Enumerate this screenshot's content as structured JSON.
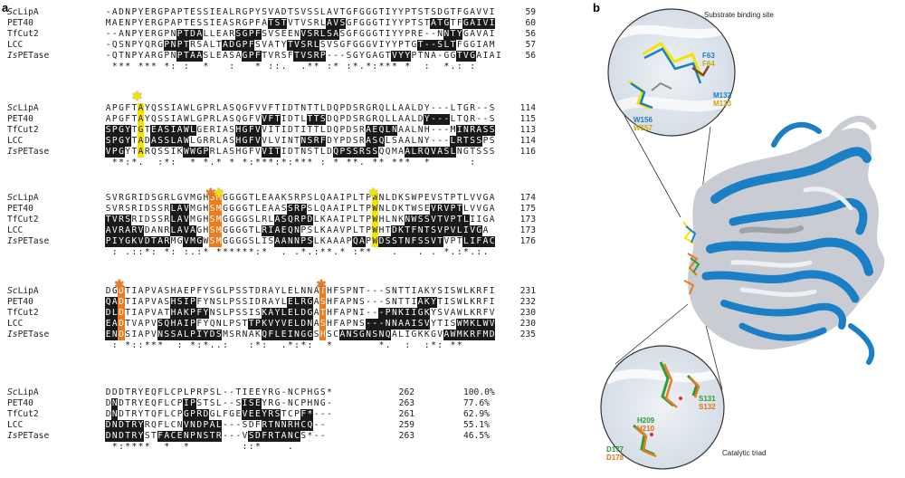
{
  "panel_a": "a",
  "panel_b": "b",
  "blocks": [
    {
      "rows": [
        {
          "name": "Sc",
          "name2": "LipA",
          "seq": "-ADNPYERGPAPTESSIEALRGPYSVADTSVSSLAVTGFGGGTIYYPTSTSDGTFGAVVI",
          "num": "59"
        },
        {
          "name": "",
          "name2": "PET40",
          "seq": "MAENPYERGPAPTESSIEASRGPFATSTVTVSRLAVSGFGGGTIYYPTSTATGTFGAIVI",
          "num": "60"
        },
        {
          "name": "",
          "name2": "TfCut2",
          "seq": "--ANPYERGPNPTDALLEARSGPFSVSEENVSRLSASGFGGGTIYYPRE--NNTYGAVAI",
          "num": "56"
        },
        {
          "name": "",
          "name2": "LCC",
          "seq": "-QSNPYQRGPNPTRSALTADGPFSVATYTVSRLSVSGFGGGVIYYPTGT--SLTFGGIAM",
          "num": "57"
        },
        {
          "name": "Is",
          "name2": "PETase",
          "seq": "-QTNPYARGPNPTAASLEASAGPFTVRSFTVSRP---SGYGAGTVYYPTNA-GGTVGAIAI",
          "num": "56"
        }
      ],
      "cons": " *** *** *: :  *   :   * ::.  .** :* :*.*:*** *  :  *.: :"
    },
    {
      "rows": [
        {
          "name": "Sc",
          "name2": "LipA",
          "seq": "APGFTAYQSSIAWLGPRLASQGFVVFTIDTNTTLDQPDSRGRQLLAALDY---LTGR--S",
          "num": "114"
        },
        {
          "name": "",
          "name2": "PET40",
          "seq": "APGFTAYQSSIAWLGPRLASQGFVVFTIDTLTTSDQPDSRGRQLLAALDY---LTQR--S",
          "num": "115"
        },
        {
          "name": "",
          "name2": "TfCut2",
          "seq": "SPGYTGTEASIAWLGERIASHGFVVITIDTITTLDQPDSRAEQLNAALNH---MINRASS",
          "num": "113"
        },
        {
          "name": "",
          "name2": "LCC",
          "seq": "SPGYTADASSLAWLGRRLASHGFVVLVINTNSRFDYPDSRASQLSAALNY---LRTSSPS",
          "num": "114"
        },
        {
          "name": "Is",
          "name2": "PETase",
          "seq": "VPGYTARQSSIKWWGPRLASHGFVVITIDTNSTLDQPSSRSSQQMAALRQVASLNGTSSS",
          "num": "116"
        }
      ],
      "cons": " **:*.  :*:  * *.* * *:***:*:*** : * **. ** ***  *      :"
    },
    {
      "rows": [
        {
          "name": "Sc",
          "name2": "LipA",
          "seq": "SVRGRIDSGRLGVMGHSMGGGGTLEAAKSRPSLQAAIPLTPWNLDKSWPEVSTPTLVVGA",
          "num": "174"
        },
        {
          "name": "",
          "name2": "PET40",
          "seq": "SVRSRIDSSRLAVMGHSMGGGGTLEAASSRPSLQAAIPLTPWNLDKTWSEVRVPTLVVGA",
          "num": "175"
        },
        {
          "name": "",
          "name2": "TfCut2",
          "seq": "TVRSRIDSSRLAVMGHSMGGGGSLRLASQRPDLKAAIPLTPWHLNKNWSSVTVPTLIIGA",
          "num": "173"
        },
        {
          "name": "",
          "name2": "LCC",
          "seq": "AVRARVDANRLAVAGHSMGGGGTLRIAEQNPSLKAAVPLTPWHTDKTFNTSVPVLIVGA",
          "num": "173"
        },
        {
          "name": "Is",
          "name2": "PETase",
          "seq": "PIYGKVDTARMGVMGWSMGGGGSLISAANNPSLKAAAPQAPWDSSTNFSSVTVPTLIFAC",
          "num": "176"
        }
      ],
      "cons": " : .::*: *: :.:* ******:*  . .*.:**.* :**   .   . . *.:*.:."
    },
    {
      "rows": [
        {
          "name": "Sc",
          "name2": "LipA",
          "seq": "DGDTIAPVASHAEPFYSGLPSSTDRAYLELNNATHFSPNT---SNTTIAKYSISWLKRFI",
          "num": "231"
        },
        {
          "name": "",
          "name2": "PET40",
          "seq": "QADTIAPVASHSIPFYNSLPSSIDRAYLELRGASHFAPNS---SNTTIAKYTISWLKRFI",
          "num": "232"
        },
        {
          "name": "",
          "name2": "TfCut2",
          "seq": "DLDTIAPVATHAKPFYNSLPSSISKAYLELDGATHFAPNI---PNKIIGKYSVAWLKRFV",
          "num": "230"
        },
        {
          "name": "",
          "name2": "LCC",
          "seq": "EADTVAPVSQHAIPFYQNLPSTTPKVYVELDNASHFAPNS---NNAAISVYTISWMKLWV",
          "num": "230"
        },
        {
          "name": "Is",
          "name2": "PETase",
          "seq": "ENDSIAPVNSSALPIYDSMSRNAKQFLEINGGSHSCANSGNSNQALIGKKGVAWMKRFMD",
          "num": "235"
        }
      ],
      "cons": " : *::***  : *:*..:   :*:  .*:*:  *       *.  :  :*: **"
    },
    {
      "rows": [
        {
          "name": "Sc",
          "name2": "LipA",
          "seq": "DDDTRYEQFLCPLPRPSL--TIEEYRG-NCPHGS*",
          "num": "262",
          "pct": "100.0%"
        },
        {
          "name": "",
          "name2": "PET40",
          "seq": "DNDTRYEQFLCPIPSTSL--SISEYRG-NCPHNG-",
          "num": "263",
          "pct": "77.6%"
        },
        {
          "name": "",
          "name2": "TfCut2",
          "seq": "DNDTRYTQFLCPGPRDGLFGEVEEYRSTCPF*---",
          "num": "261",
          "pct": "62.9%"
        },
        {
          "name": "",
          "name2": "LCC",
          "seq": "DNDTRYRQFLCNVNDPAL---SDFRTNNRHCQ--",
          "num": "259",
          "pct": "55.1%"
        },
        {
          "name": "Is",
          "name2": "PETase",
          "seq": "DNDTRYSTFACENPNSTR---VSDFRTANCS*--",
          "num": "263",
          "pct": "46.5%"
        }
      ],
      "cons": " *:****  *  *        ::*    ."
    }
  ],
  "markers": [
    {
      "symbol": "✱",
      "color": "#f5e300"
    },
    {
      "symbol": "✱",
      "color": "#ee7a1c"
    },
    {
      "symbol": "✱",
      "color": "#f5e300"
    },
    {
      "symbol": "✱",
      "color": "#f5e300"
    },
    {
      "symbol": "✱",
      "color": "#ee7a1c"
    },
    {
      "symbol": "✱",
      "color": "#ee7a1c"
    }
  ],
  "structure": {
    "top_caption": "Substrate binding site",
    "bottom_caption": "Catalytic triad",
    "top_labels": [
      {
        "text": "F63",
        "color": "#1a7fc4"
      },
      {
        "text": "F64",
        "color": "#c9a800"
      },
      {
        "text": "M132",
        "color": "#1a7fc4"
      },
      {
        "text": "M133",
        "color": "#c9a800"
      },
      {
        "text": "W156",
        "color": "#1a7fc4"
      },
      {
        "text": "W157",
        "color": "#c9a800"
      }
    ],
    "bottom_labels": [
      {
        "text": "S131",
        "color": "#2a9d3a"
      },
      {
        "text": "S132",
        "color": "#e0721a"
      },
      {
        "text": "H209",
        "color": "#2a9d3a"
      },
      {
        "text": "H210",
        "color": "#e0721a"
      },
      {
        "text": "D177",
        "color": "#2a9d3a"
      },
      {
        "text": "D178",
        "color": "#e0721a"
      }
    ],
    "colors": {
      "blue": "#1a7fc4",
      "grey": "#c9ccd2",
      "yellow": "#f5e300",
      "orange": "#ee7a1c"
    }
  }
}
